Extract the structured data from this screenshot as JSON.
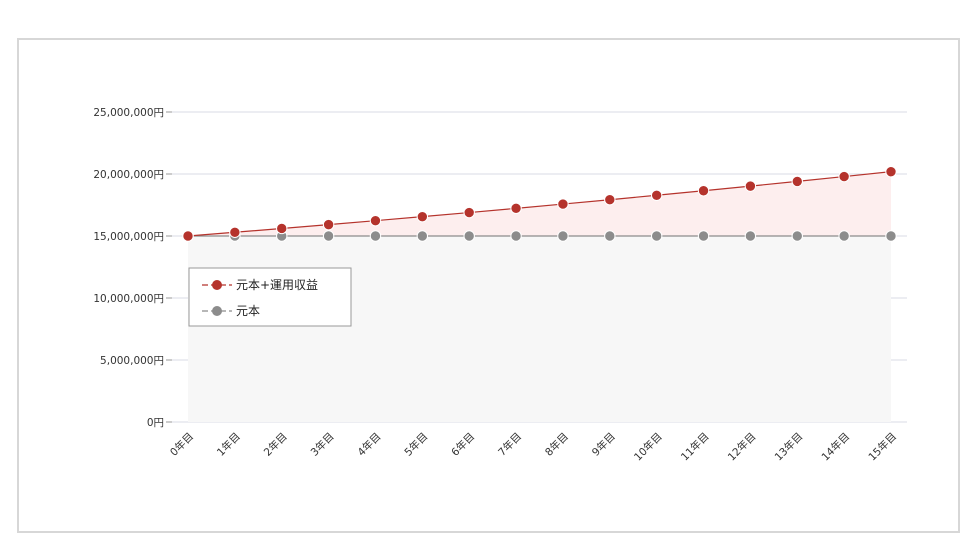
{
  "chart_data": {
    "type": "area",
    "title": "",
    "xlabel": "",
    "ylabel": "",
    "categories": [
      "0年目",
      "1年目",
      "2年目",
      "3年目",
      "4年目",
      "5年目",
      "6年目",
      "7年目",
      "8年目",
      "9年目",
      "10年目",
      "11年目",
      "12年目",
      "13年目",
      "14年目",
      "15年目"
    ],
    "ylim": [
      0,
      25000000
    ],
    "y_ticks": [
      {
        "value": 0,
        "label": "0円"
      },
      {
        "value": 5000000,
        "label": "5,000,000円"
      },
      {
        "value": 10000000,
        "label": "10,000,000円"
      },
      {
        "value": 15000000,
        "label": "15,000,000円"
      },
      {
        "value": 20000000,
        "label": "20,000,000円"
      },
      {
        "value": 25000000,
        "label": "25,000,000円"
      }
    ],
    "grid": true,
    "legend_position": "left",
    "series": [
      {
        "name": "元本+運用収益",
        "color": "#b5332c",
        "fill": "#fdeeee",
        "values": [
          15000000,
          15300000,
          15606000,
          15918000,
          16236000,
          16561000,
          16892000,
          17230000,
          17575000,
          17926000,
          18285000,
          18650000,
          19023000,
          19404000,
          19792000,
          20188000
        ]
      },
      {
        "name": "元本",
        "color": "#8c8c8c",
        "fill": "#f7f7f7",
        "values": [
          15000000,
          15000000,
          15000000,
          15000000,
          15000000,
          15000000,
          15000000,
          15000000,
          15000000,
          15000000,
          15000000,
          15000000,
          15000000,
          15000000,
          15000000,
          15000000
        ]
      }
    ]
  }
}
